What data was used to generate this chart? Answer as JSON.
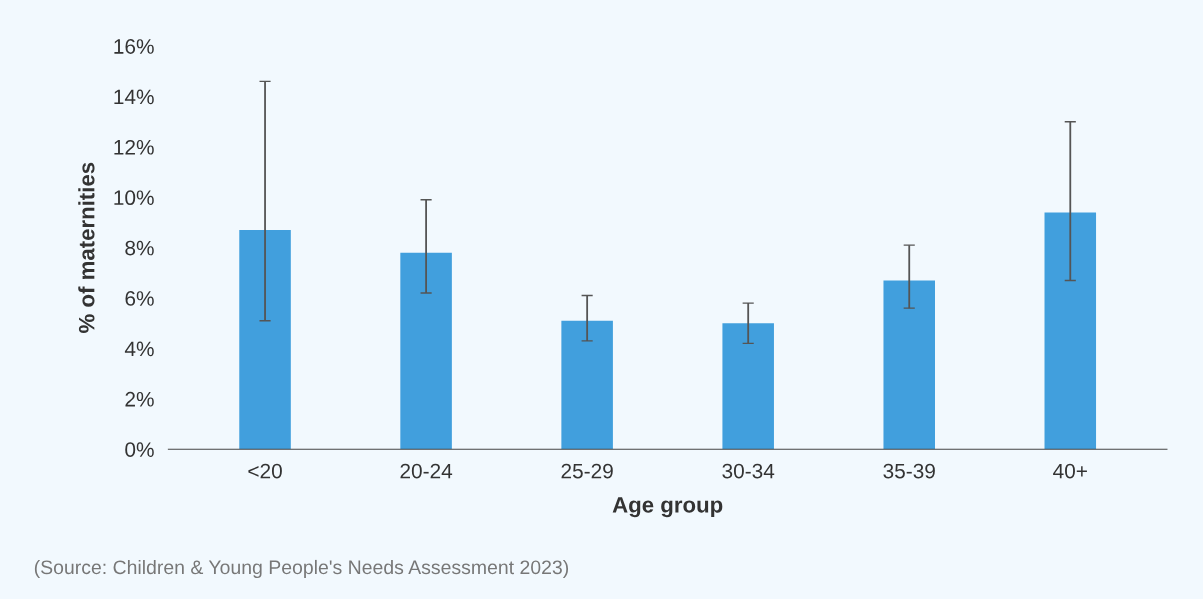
{
  "chart_data": {
    "type": "bar",
    "xlabel": "Age group",
    "ylabel": "% of maternities",
    "categories": [
      "<20",
      "20-24",
      "25-29",
      "30-34",
      "35-39",
      "40+"
    ],
    "values": [
      8.7,
      7.8,
      5.1,
      5.0,
      6.7,
      9.4
    ],
    "errors": [
      [
        5.1,
        14.6
      ],
      [
        6.2,
        9.9
      ],
      [
        4.3,
        6.1
      ],
      [
        4.2,
        5.8
      ],
      [
        5.6,
        8.1
      ],
      [
        6.7,
        13.0
      ]
    ],
    "color": "#419fdd",
    "ylim": [
      0,
      16
    ],
    "yticks": [
      {
        "value": 0,
        "label": "0%"
      },
      {
        "value": 2,
        "label": "2%"
      },
      {
        "value": 4,
        "label": "4%"
      },
      {
        "value": 6,
        "label": "6%"
      },
      {
        "value": 8,
        "label": "8%"
      },
      {
        "value": 10,
        "label": "10%"
      },
      {
        "value": 12,
        "label": "12%"
      },
      {
        "value": 14,
        "label": "14%"
      },
      {
        "value": 16,
        "label": "16%"
      }
    ],
    "grid": false,
    "annotations": [
      "(Source: Children & Young People's Needs Assessment 2023)"
    ]
  }
}
